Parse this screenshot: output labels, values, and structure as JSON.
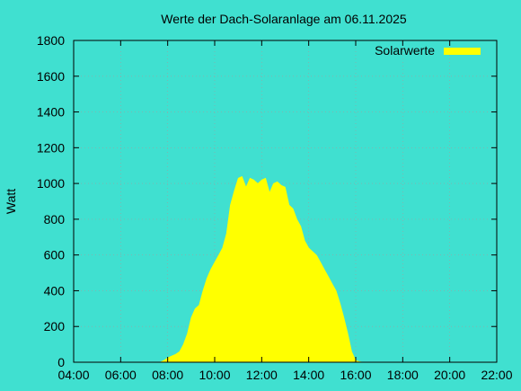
{
  "chart_data": {
    "type": "area",
    "title": "Werte der Dach-Solaranlage am 06.11.2025",
    "ylabel": "Watt",
    "xlabel": "",
    "ylim": [
      0,
      1800
    ],
    "xlim": [
      "04:00",
      "22:00"
    ],
    "x_ticks": [
      "04:00",
      "06:00",
      "08:00",
      "10:00",
      "12:00",
      "14:00",
      "16:00",
      "18:00",
      "20:00",
      "22:00"
    ],
    "y_ticks": [
      0,
      200,
      400,
      600,
      800,
      1000,
      1200,
      1400,
      1600,
      1800
    ],
    "grid": true,
    "legend_position": "top-right",
    "colors": {
      "background": "#40E0D0",
      "series": "#FFFF00",
      "grid": "#A0A0A0"
    },
    "series": [
      {
        "name": "Solarwerte",
        "x": [
          "07:40",
          "07:50",
          "08:00",
          "08:10",
          "08:20",
          "08:30",
          "08:40",
          "08:50",
          "09:00",
          "09:10",
          "09:20",
          "09:30",
          "09:40",
          "09:50",
          "10:00",
          "10:10",
          "10:20",
          "10:30",
          "10:40",
          "10:50",
          "11:00",
          "11:10",
          "11:20",
          "11:30",
          "11:40",
          "11:50",
          "12:00",
          "12:10",
          "12:20",
          "12:30",
          "12:40",
          "12:50",
          "13:00",
          "13:10",
          "13:20",
          "13:30",
          "13:40",
          "13:50",
          "14:00",
          "14:10",
          "14:20",
          "14:30",
          "14:40",
          "14:50",
          "15:00",
          "15:10",
          "15:20",
          "15:30",
          "15:40",
          "15:50",
          "16:00",
          "16:10",
          "16:20"
        ],
        "values": [
          0,
          10,
          25,
          35,
          45,
          60,
          100,
          160,
          250,
          300,
          320,
          400,
          470,
          520,
          560,
          600,
          640,
          720,
          880,
          960,
          1030,
          1040,
          980,
          1030,
          1020,
          1000,
          1020,
          1030,
          950,
          1000,
          1010,
          990,
          980,
          880,
          860,
          800,
          760,
          680,
          640,
          620,
          600,
          560,
          520,
          480,
          440,
          400,
          330,
          250,
          160,
          60,
          10,
          3,
          0
        ]
      }
    ]
  }
}
